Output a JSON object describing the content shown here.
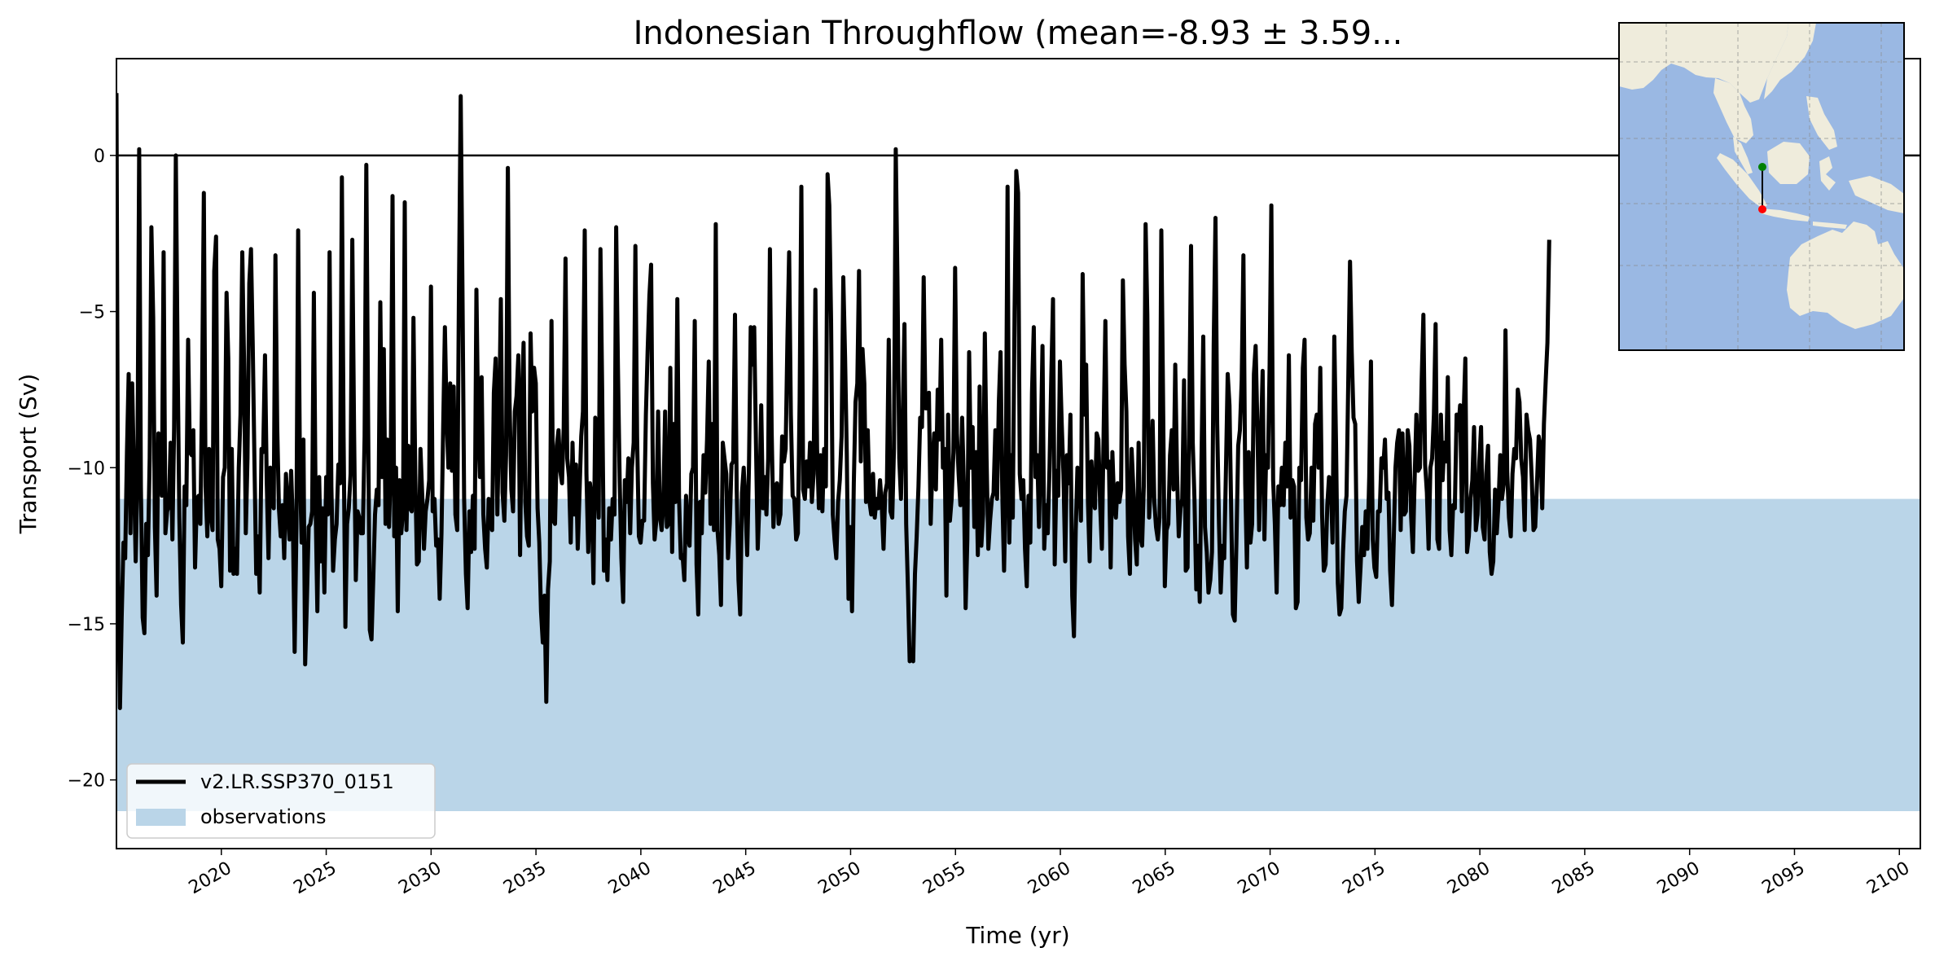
{
  "chart_data": {
    "type": "line",
    "title": "Indonesian Throughflow (mean=-8.93 ± 3.59...",
    "xlabel": "Time (yr)",
    "ylabel": "Transport (Sv)",
    "xlim": [
      2015,
      2101
    ],
    "ylim": [
      -22.2,
      3.1
    ],
    "xticks": [
      2020,
      2025,
      2030,
      2035,
      2040,
      2045,
      2050,
      2055,
      2060,
      2065,
      2070,
      2075,
      2080,
      2085,
      2090,
      2095,
      2100
    ],
    "xtick_labels": [
      "2020",
      "2025",
      "2030",
      "2035",
      "2040",
      "2045",
      "2050",
      "2055",
      "2060",
      "2065",
      "2070",
      "2075",
      "2080",
      "2085",
      "2090",
      "2095",
      "2100"
    ],
    "yticks": [
      0,
      -5,
      -10,
      -15,
      -20
    ],
    "ytick_labels": [
      "0",
      "−5",
      "−10",
      "−15",
      "−20"
    ],
    "zero_line": 0,
    "observations_band": {
      "name": "observations",
      "lower": -21,
      "upper": -11,
      "color": "#bad5e8"
    },
    "series": [
      {
        "name": "v2.LR.SSP370_0151",
        "color": "#000000",
        "x_start": 2015,
        "x_step": 0.0833,
        "values": [
          2.0,
          -13.5,
          -17.7,
          -14.8,
          -12.4,
          -12.9,
          -9.5,
          -7.0,
          -12.1,
          -7.3,
          -10.2,
          -13.0,
          -10.4,
          0.2,
          -10.6,
          -14.8,
          -15.3,
          -11.8,
          -12.8,
          -9.7,
          -2.3,
          -5.2,
          -11.9,
          -14.1,
          -8.9,
          -9.9,
          -10.9,
          -3.1,
          -12.1,
          -11.4,
          -11.2,
          -9.2,
          -12.3,
          -8.7,
          0.0,
          -6.6,
          -11.6,
          -14.4,
          -15.6,
          -10.6,
          -11.2,
          -5.9,
          -9.5,
          -9.6,
          -8.8,
          -13.2,
          -11.0,
          -10.9,
          -11.8,
          -7.7,
          -1.2,
          -10.6,
          -12.2,
          -9.4,
          -11.5,
          -12.0,
          -3.7,
          -2.6,
          -12.3,
          -12.6,
          -13.8,
          -10.3,
          -10.0,
          -4.4,
          -6.5,
          -13.3,
          -9.4,
          -13.4,
          -12.6,
          -13.4,
          -10.0,
          -8.3,
          -3.1,
          -6.5,
          -12.1,
          -9.7,
          -4.1,
          -3.0,
          -6.0,
          -9.9,
          -13.4,
          -12.2,
          -14.0,
          -9.4,
          -9.5,
          -6.4,
          -10.4,
          -12.9,
          -10.0,
          -11.1,
          -11.3,
          -3.2,
          -8.7,
          -11.3,
          -12.2,
          -11.2,
          -12.9,
          -10.2,
          -11.2,
          -12.3,
          -10.1,
          -11.9,
          -15.9,
          -11.9,
          -2.4,
          -10.1,
          -12.4,
          -9.1,
          -16.3,
          -14.2,
          -11.9,
          -11.8,
          -11.4,
          -4.4,
          -11.3,
          -14.6,
          -10.3,
          -13.0,
          -11.3,
          -14.0,
          -10.3,
          -11.5,
          -3.1,
          -10.6,
          -13.3,
          -12.3,
          -11.8,
          -9.9,
          -10.5,
          -0.7,
          -9.0,
          -15.1,
          -11.8,
          -11.3,
          -10.2,
          -2.7,
          -8.9,
          -13.6,
          -11.4,
          -11.6,
          -12.1,
          -12.1,
          -9.0,
          -0.3,
          -8.1,
          -15.2,
          -15.5,
          -13.5,
          -11.5,
          -10.7,
          -11.2,
          -4.7,
          -10.3,
          -6.2,
          -11.8,
          -9.1,
          -11.9,
          -10.0,
          -1.3,
          -12.2,
          -10.0,
          -14.6,
          -10.4,
          -12.1,
          -11.4,
          -1.5,
          -12.0,
          -9.3,
          -11.3,
          -11.4,
          -5.2,
          -10.2,
          -13.1,
          -13.0,
          -9.4,
          -10.9,
          -12.6,
          -11.4,
          -11.0,
          -10.4,
          -4.2,
          -11.4,
          -11.0,
          -12.5,
          -12.3,
          -14.2,
          -12.1,
          -8.7,
          -5.5,
          -8.5,
          -10.0,
          -7.3,
          -10.1,
          -7.4,
          -11.5,
          -12.0,
          -4.5,
          1.9,
          -4.1,
          -11.0,
          -13.4,
          -14.5,
          -11.4,
          -12.7,
          -10.9,
          -12.6,
          -4.3,
          -8.6,
          -10.3,
          -7.1,
          -11.5,
          -12.6,
          -13.2,
          -11.0,
          -11.8,
          -12.0,
          -7.6,
          -6.5,
          -11.5,
          -8.5,
          -4.6,
          -10.8,
          -11.7,
          -9.6,
          -0.4,
          -7.9,
          -10.7,
          -11.4,
          -8.2,
          -7.7,
          -6.4,
          -12.8,
          -8.2,
          -6.0,
          -11.1,
          -12.2,
          -12.5,
          -5.7,
          -8.2,
          -6.8,
          -7.3,
          -11.3,
          -12.4,
          -14.6,
          -15.6,
          -14.1,
          -17.5,
          -13.9,
          -13.0,
          -5.3,
          -11.7,
          -11.8,
          -9.3,
          -8.8,
          -10.1,
          -10.5,
          -8.7,
          -3.3,
          -9.7,
          -10.3,
          -12.4,
          -9.2,
          -11.5,
          -9.9,
          -12.6,
          -10.9,
          -9.0,
          -8.2,
          -2.4,
          -10.2,
          -12.7,
          -10.5,
          -11.0,
          -13.7,
          -8.4,
          -10.3,
          -11.6,
          -3.0,
          -7.5,
          -13.3,
          -12.3,
          -13.6,
          -11.3,
          -12.3,
          -11.0,
          -11.5,
          -2.3,
          -6.7,
          -10.4,
          -12.9,
          -14.3,
          -10.4,
          -11.1,
          -9.7,
          -12.1,
          -10.0,
          -9.2,
          -2.9,
          -9.0,
          -12.2,
          -12.4,
          -11.7,
          -11.7,
          -8.3,
          -6.3,
          -4.5,
          -3.5,
          -10.5,
          -12.3,
          -11.7,
          -8.2,
          -11.5,
          -12.0,
          -11.2,
          -8.2,
          -11.9,
          -11.8,
          -6.8,
          -12.7,
          -8.6,
          -11.1,
          -4.6,
          -11.0,
          -12.9,
          -12.8,
          -13.6,
          -10.9,
          -12.2,
          -12.5,
          -10.2,
          -10.0,
          -5.3,
          -13.1,
          -14.7,
          -11.1,
          -12.1,
          -9.6,
          -10.8,
          -9.1,
          -6.6,
          -11.8,
          -8.6,
          -12.0,
          -2.2,
          -12.0,
          -12.8,
          -14.4,
          -9.2,
          -9.7,
          -10.2,
          -12.9,
          -11.8,
          -9.9,
          -9.8,
          -5.1,
          -10.7,
          -13.6,
          -14.7,
          -10.8,
          -10.0,
          -11.3,
          -12.8,
          -9.9,
          -5.5,
          -6.7,
          -5.5,
          -9.1,
          -12.6,
          -11.1,
          -8.0,
          -11.3,
          -10.3,
          -11.5,
          -9.7,
          -3.0,
          -8.8,
          -11.9,
          -10.6,
          -10.5,
          -11.8,
          -11.5,
          -9.0,
          -9.8,
          -9.4,
          -5.9,
          -3.1,
          -8.3,
          -10.9,
          -11.0,
          -12.3,
          -12.1,
          -7.8,
          -1.0,
          -10.7,
          -11.0,
          -9.8,
          -10.6,
          -9.2,
          -11.1,
          -10.2,
          -4.3,
          -9.4,
          -11.3,
          -9.6,
          -11.4,
          -9.4,
          -10.6,
          -0.6,
          -1.6,
          -5.3,
          -11.5,
          -12.3,
          -12.9,
          -11.1,
          -10.4,
          -9.0,
          -3.9,
          -6.5,
          -9.6,
          -14.2,
          -11.9,
          -14.6,
          -10.5,
          -7.9,
          -7.3,
          -3.7,
          -9.8,
          -6.2,
          -7.3,
          -11.1,
          -8.8,
          -11.1,
          -11.5,
          -10.2,
          -11.6,
          -11.0,
          -11.3,
          -10.4,
          -11.2,
          -12.6,
          -10.8,
          -10.5,
          -5.9,
          -11.4,
          -11.6,
          -9.4,
          0.2,
          -4.0,
          -9.7,
          -11.0,
          -8.3,
          -5.4,
          -11.8,
          -13.9,
          -16.2,
          -16.0,
          -16.2,
          -13.4,
          -12.2,
          -10.6,
          -8.4,
          -8.7,
          -3.9,
          -8.1,
          -8.1,
          -7.6,
          -11.8,
          -9.9,
          -8.9,
          -10.7,
          -7.5,
          -9.1,
          -5.9,
          -10.0,
          -9.4,
          -14.1,
          -8.3,
          -11.7,
          -11.0,
          -9.5,
          -3.6,
          -8.9,
          -10.2,
          -11.2,
          -8.4,
          -10.5,
          -14.5,
          -12.3,
          -6.3,
          -10.0,
          -8.7,
          -11.9,
          -9.5,
          -12.8,
          -7.4,
          -12.5,
          -11.5,
          -5.7,
          -9.7,
          -12.6,
          -11.7,
          -11.0,
          -10.8,
          -8.8,
          -11.0,
          -7.9,
          -6.3,
          -10.8,
          -13.3,
          -10.4,
          -1.0,
          -12.4,
          -9.6,
          -11.6,
          -5.0,
          -0.5,
          -1.2,
          -10.2,
          -11.0,
          -10.4,
          -12.6,
          -13.8,
          -10.9,
          -12.4,
          -7.6,
          -5.5,
          -10.3,
          -9.6,
          -11.9,
          -9.4,
          -6.1,
          -12.6,
          -11.2,
          -12.1,
          -10.0,
          -7.2,
          -4.6,
          -13.1,
          -10.1,
          -10.9,
          -6.6,
          -8.6,
          -10.2,
          -13.0,
          -9.6,
          -10.5,
          -8.3,
          -14.1,
          -15.4,
          -12.0,
          -10.0,
          -10.3,
          -11.7,
          -3.8,
          -8.3,
          -6.7,
          -11.1,
          -13.0,
          -9.8,
          -10.9,
          -11.3,
          -8.9,
          -9.1,
          -11.2,
          -12.6,
          -8.8,
          -5.3,
          -10.0,
          -9.8,
          -13.2,
          -9.5,
          -11.2,
          -11.6,
          -10.5,
          -11.1,
          -10.7,
          -4.0,
          -6.7,
          -8.2,
          -12.2,
          -13.4,
          -9.4,
          -10.7,
          -12.3,
          -13.1,
          -9.2,
          -12.2,
          -12.5,
          -10.6,
          -2.2,
          -5.1,
          -11.6,
          -10.5,
          -8.5,
          -11.1,
          -11.9,
          -12.3,
          -11.6,
          -2.4,
          -7.7,
          -13.8,
          -12.0,
          -11.8,
          -9.6,
          -8.8,
          -10.7,
          -6.7,
          -10.2,
          -12.2,
          -11.3,
          -11.0,
          -7.2,
          -13.3,
          -13.2,
          -8.2,
          -2.9,
          -9.2,
          -11.0,
          -13.9,
          -12.5,
          -14.3,
          -9.8,
          -5.8,
          -11.9,
          -12.7,
          -14.0,
          -13.6,
          -12.7,
          -6.1,
          -2.0,
          -8.6,
          -11.8,
          -14.0,
          -12.5,
          -12.9,
          -10.0,
          -7.0,
          -8.0,
          -11.4,
          -14.7,
          -14.9,
          -12.4,
          -9.3,
          -8.8,
          -7.2,
          -3.2,
          -10.5,
          -13.2,
          -9.5,
          -12.4,
          -11.8,
          -7.0,
          -6.1,
          -8.7,
          -12.0,
          -9.1,
          -6.9,
          -12.3,
          -9.6,
          -10.0,
          -6.7,
          -1.6,
          -10.4,
          -11.8,
          -14.0,
          -10.6,
          -11.2,
          -10.0,
          -11.2,
          -9.2,
          -10.6,
          -6.4,
          -11.6,
          -10.4,
          -10.6,
          -14.5,
          -14.3,
          -10.0,
          -10.4,
          -6.8,
          -5.9,
          -11.6,
          -12.3,
          -12.1,
          -10.0,
          -11.7,
          -8.6,
          -8.3,
          -10.0,
          -6.8,
          -11.5,
          -13.3,
          -13.1,
          -11.2,
          -10.3,
          -10.4,
          -12.4,
          -5.8,
          -9.2,
          -13.7,
          -14.7,
          -14.5,
          -12.7,
          -11.4,
          -10.9,
          -7.3,
          -3.4,
          -6.3,
          -8.4,
          -8.6,
          -13.0,
          -14.3,
          -13.2,
          -11.9,
          -12.8,
          -11.4,
          -12.6,
          -10.3,
          -6.6,
          -12.3,
          -13.2,
          -13.5,
          -11.4,
          -11.4,
          -9.7,
          -10.0,
          -9.1,
          -11.0,
          -10.8,
          -13.3,
          -14.4,
          -12.4,
          -10.0,
          -9.2,
          -8.8,
          -12.0,
          -8.9,
          -11.5,
          -11.4,
          -8.8,
          -9.3,
          -11.6,
          -12.7,
          -10.3,
          -8.3,
          -10.1,
          -10.0,
          -7.2,
          -5.1,
          -9.9,
          -10.8,
          -12.6,
          -10.0,
          -9.7,
          -8.3,
          -5.4,
          -12.3,
          -12.6,
          -8.3,
          -10.4,
          -9.2,
          -9.8,
          -7.1,
          -12.0,
          -12.8,
          -11.2,
          -11.3,
          -8.3,
          -8.8,
          -8.0,
          -11.4,
          -8.4,
          -6.5,
          -12.7,
          -12.2,
          -11.0,
          -10.4,
          -8.7,
          -12.0,
          -11.5,
          -9.8,
          -8.7,
          -11.9,
          -12.3,
          -10.2,
          -9.3,
          -12.7,
          -13.4,
          -13.0,
          -10.7,
          -12.1,
          -11.1,
          -9.6,
          -11.0,
          -10.5,
          -5.6,
          -10.2,
          -11.6,
          -12.2,
          -10.2,
          -9.4,
          -9.7,
          -7.5,
          -7.9,
          -9.7,
          -10.3,
          -12.0,
          -8.3,
          -8.8,
          -9.1,
          -10.3,
          -12.0,
          -11.9,
          -10.5,
          -9.0,
          -9.3,
          -11.3,
          -8.6,
          -7.2,
          -6.0,
          -2.7
        ]
      }
    ]
  },
  "legend": {
    "items": [
      {
        "label": "v2.LR.SSP370_0151",
        "kind": "line",
        "color": "#000000"
      },
      {
        "label": "observations",
        "kind": "patch",
        "color": "#bad5e8"
      }
    ]
  },
  "inset_map": {
    "ocean_color": "#9ab8e3",
    "land_color": "#efecdc",
    "section_start_marker": "green",
    "section_end_marker": "red"
  }
}
